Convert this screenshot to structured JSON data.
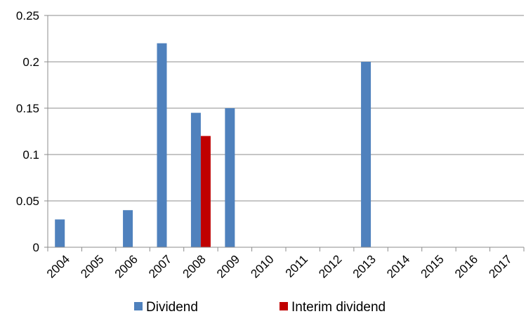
{
  "chart_data": {
    "type": "bar",
    "title": "",
    "xlabel": "",
    "ylabel": "",
    "categories": [
      "2004",
      "2005",
      "2006",
      "2007",
      "2008",
      "2009",
      "2010",
      "2011",
      "2012",
      "2013",
      "2014",
      "2015",
      "2016",
      "2017"
    ],
    "ylim": [
      0,
      0.25
    ],
    "yticks": [
      "0",
      "0.05",
      "0.1",
      "0.15",
      "0.2",
      "0.25"
    ],
    "grid": true,
    "legend_position": "bottom",
    "series": [
      {
        "name": "Dividend",
        "color": "#4f81bd",
        "values": [
          0.03,
          0,
          0.04,
          0.22,
          0.145,
          0.15,
          0,
          0,
          0,
          0.2,
          0,
          0,
          0,
          0
        ]
      },
      {
        "name": "Interim dividend",
        "color": "#c00000",
        "values": [
          0,
          0,
          0,
          0,
          0.12,
          0,
          0,
          0,
          0,
          0,
          0,
          0,
          0,
          0
        ]
      }
    ]
  }
}
